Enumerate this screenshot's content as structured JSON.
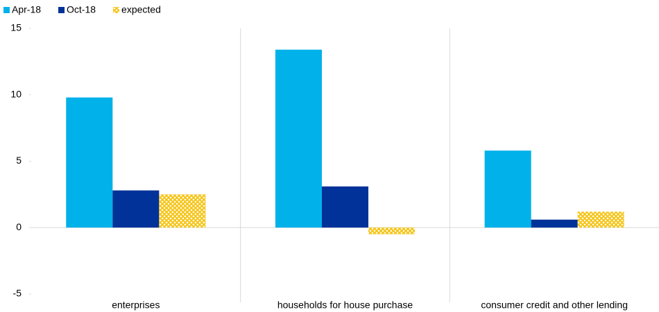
{
  "chart_data": {
    "type": "bar",
    "categories": [
      "enterprises",
      "households for house purchase",
      "consumer credit and other lending"
    ],
    "series": [
      {
        "name": "Apr-18",
        "color": "#00b1ea",
        "values": [
          9.8,
          13.4,
          5.8
        ]
      },
      {
        "name": "Oct-18",
        "color": "#003299",
        "values": [
          2.8,
          3.1,
          0.6
        ]
      },
      {
        "name": "expected",
        "color": "#f5c518",
        "pattern": "crosshatch",
        "values": [
          2.5,
          -0.5,
          1.2
        ]
      }
    ],
    "ylim": [
      -5,
      15
    ],
    "yticks": [
      -5,
      0,
      5,
      10,
      15
    ],
    "legend": "top-left"
  }
}
